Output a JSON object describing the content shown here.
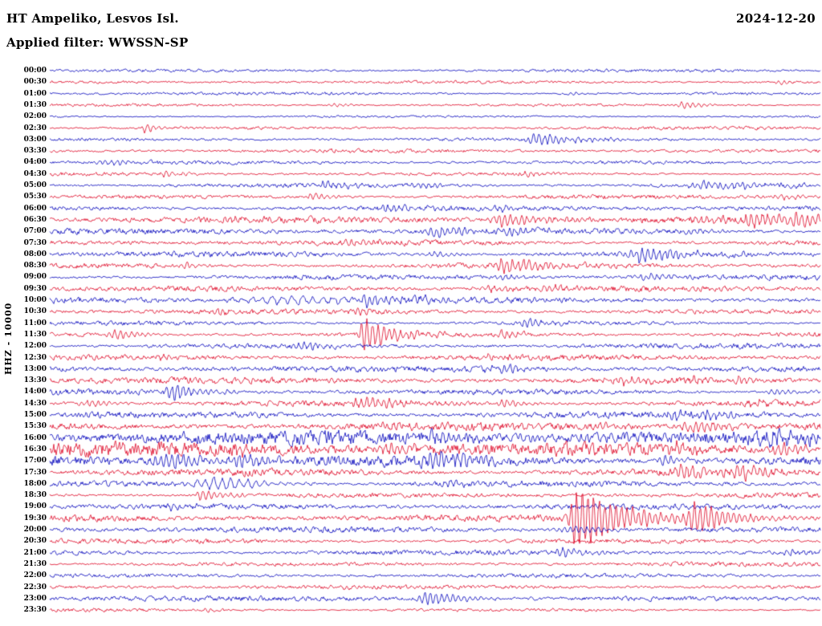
{
  "header": {
    "station": "HT Ampeliko, Lesvos Isl.",
    "date": "2024-12-20",
    "filter": "Applied filter: WWSSN-SP"
  },
  "y_axis": {
    "label": "HHZ - 10000"
  },
  "colors": {
    "trace_blue": "#0000bb",
    "trace_red": "#dd0022",
    "background": "#ffffff",
    "text": "#000000"
  },
  "chart_data": {
    "type": "line",
    "subtype": "helicorder-seismogram",
    "title": "HT Ampeliko, Lesvos Isl.",
    "date": "2024-12-20",
    "channel": "HHZ",
    "amplitude_scale": 10000,
    "filter": "WWSSN-SP",
    "minutes_per_row": 30,
    "n_rows": 48,
    "x_range_minutes": [
      0,
      30
    ],
    "legend": "alternating blue/red traces per 30-minute row",
    "rows": [
      {
        "label": "00:00",
        "color": "blue",
        "noise": 1.2,
        "events": []
      },
      {
        "label": "00:30",
        "color": "red",
        "noise": 1.2,
        "events": [
          {
            "t": 0.945,
            "amp": 3,
            "rise": 3,
            "decay": 8
          }
        ]
      },
      {
        "label": "01:00",
        "color": "blue",
        "noise": 1.3,
        "events": [
          {
            "t": 0.68,
            "amp": 2.5,
            "rise": 3,
            "decay": 8
          }
        ]
      },
      {
        "label": "01:30",
        "color": "red",
        "noise": 1.3,
        "events": [
          {
            "t": 0.82,
            "amp": 5,
            "rise": 3,
            "decay": 15
          },
          {
            "t": 0.37,
            "amp": 2.5,
            "rise": 3,
            "decay": 8
          }
        ]
      },
      {
        "label": "02:00",
        "color": "blue",
        "noise": 1.2,
        "events": []
      },
      {
        "label": "02:30",
        "color": "red",
        "noise": 1.4,
        "events": [
          {
            "t": 0.125,
            "amp": 6,
            "rise": 3,
            "decay": 12
          }
        ]
      },
      {
        "label": "03:00",
        "color": "blue",
        "noise": 1.4,
        "events": [
          {
            "t": 0.63,
            "amp": 8,
            "rise": 5,
            "decay": 25
          }
        ]
      },
      {
        "label": "03:30",
        "color": "red",
        "noise": 1.4,
        "events": [
          {
            "t": 0.37,
            "amp": 2.5,
            "rise": 4,
            "decay": 10
          }
        ]
      },
      {
        "label": "04:00",
        "color": "blue",
        "noise": 1.5,
        "events": [
          {
            "t": 0.076,
            "amp": 4,
            "rise": 4,
            "decay": 15
          }
        ]
      },
      {
        "label": "04:30",
        "color": "red",
        "noise": 1.6,
        "events": [
          {
            "t": 0.15,
            "amp": 4,
            "rise": 3,
            "decay": 12
          },
          {
            "t": 0.62,
            "amp": 3,
            "rise": 4,
            "decay": 10
          }
        ]
      },
      {
        "label": "05:00",
        "color": "blue",
        "noise": 2.2,
        "events": [
          {
            "t": 0.36,
            "amp": 5,
            "rise": 6,
            "decay": 20
          },
          {
            "t": 0.475,
            "amp": 4,
            "rise": 5,
            "decay": 15
          },
          {
            "t": 0.85,
            "amp": 6,
            "rise": 10,
            "decay": 40
          }
        ]
      },
      {
        "label": "05:30",
        "color": "red",
        "noise": 2.0,
        "events": [
          {
            "t": 0.34,
            "amp": 6,
            "rise": 3,
            "decay": 10
          },
          {
            "t": 0.95,
            "amp": 4,
            "rise": 5,
            "decay": 15
          }
        ]
      },
      {
        "label": "06:00",
        "color": "blue",
        "noise": 2.2,
        "events": [
          {
            "t": 0.435,
            "amp": 4,
            "rise": 6,
            "decay": 15
          },
          {
            "t": 0.58,
            "amp": 4,
            "rise": 5,
            "decay": 15
          }
        ]
      },
      {
        "label": "06:30",
        "color": "red",
        "noise": 2.6,
        "events": [
          {
            "t": 0.23,
            "amp": 4,
            "rise": 5,
            "decay": 12
          },
          {
            "t": 0.59,
            "amp": 8,
            "rise": 8,
            "decay": 30
          },
          {
            "t": 0.84,
            "amp": 6,
            "rise": 5,
            "decay": 15
          },
          {
            "t": 0.91,
            "amp": 10,
            "rise": 6,
            "decay": 25
          },
          {
            "t": 0.97,
            "amp": 7,
            "rise": 6,
            "decay": 20
          }
        ]
      },
      {
        "label": "07:00",
        "color": "blue",
        "noise": 2.4,
        "events": [
          {
            "t": 0.5,
            "amp": 9,
            "rise": 6,
            "decay": 25
          },
          {
            "t": 0.6,
            "amp": 4,
            "rise": 4,
            "decay": 12
          },
          {
            "t": 0.83,
            "amp": 4,
            "rise": 4,
            "decay": 12
          }
        ]
      },
      {
        "label": "07:30",
        "color": "red",
        "noise": 2.4,
        "events": [
          {
            "t": 0.4,
            "amp": 4,
            "rise": 8,
            "decay": 20
          }
        ]
      },
      {
        "label": "08:00",
        "color": "blue",
        "noise": 2.8,
        "events": [
          {
            "t": 0.765,
            "amp": 10,
            "rise": 8,
            "decay": 30
          },
          {
            "t": 0.5,
            "amp": 4,
            "rise": 5,
            "decay": 15
          }
        ]
      },
      {
        "label": "08:30",
        "color": "red",
        "noise": 2.6,
        "events": [
          {
            "t": 0.59,
            "amp": 9,
            "rise": 8,
            "decay": 30
          },
          {
            "t": 0.175,
            "amp": 4,
            "rise": 4,
            "decay": 10
          }
        ]
      },
      {
        "label": "09:00",
        "color": "blue",
        "noise": 2.2,
        "events": [
          {
            "t": 0.775,
            "amp": 5,
            "rise": 5,
            "decay": 15
          },
          {
            "t": 0.59,
            "amp": 4,
            "rise": 4,
            "decay": 12
          }
        ]
      },
      {
        "label": "09:30",
        "color": "red",
        "noise": 2.2,
        "events": [
          {
            "t": 0.57,
            "amp": 5,
            "rise": 6,
            "decay": 15
          },
          {
            "t": 0.65,
            "amp": 4,
            "rise": 5,
            "decay": 12
          }
        ]
      },
      {
        "label": "10:00",
        "color": "blue",
        "noise": 2.4,
        "events": [
          {
            "t": 0.35,
            "amp": 6,
            "rise": 55,
            "decay": 45,
            "freq": 0.5
          },
          {
            "t": 0.41,
            "amp": 9,
            "rise": 4,
            "decay": 15
          },
          {
            "t": 0.48,
            "amp": 4,
            "rise": 4,
            "decay": 12
          }
        ]
      },
      {
        "label": "10:30",
        "color": "red",
        "noise": 2.2,
        "events": [
          {
            "t": 0.22,
            "amp": 4,
            "rise": 4,
            "decay": 12
          },
          {
            "t": 0.4,
            "amp": 3.5,
            "rise": 4,
            "decay": 12
          }
        ]
      },
      {
        "label": "11:00",
        "color": "blue",
        "noise": 2.0,
        "events": [
          {
            "t": 0.62,
            "amp": 6,
            "rise": 4,
            "decay": 15
          }
        ]
      },
      {
        "label": "11:30",
        "color": "red",
        "noise": 2.4,
        "events": [
          {
            "t": 0.41,
            "amp": 22,
            "rise": 4,
            "decay": 18
          },
          {
            "t": 0.085,
            "amp": 7,
            "rise": 5,
            "decay": 15
          },
          {
            "t": 0.59,
            "amp": 5,
            "rise": 5,
            "decay": 15
          }
        ]
      },
      {
        "label": "12:00",
        "color": "blue",
        "noise": 2.2,
        "events": [
          {
            "t": 0.33,
            "amp": 4,
            "rise": 5,
            "decay": 15
          }
        ]
      },
      {
        "label": "12:30",
        "color": "red",
        "noise": 2.2,
        "events": [
          {
            "t": 0.14,
            "amp": 5,
            "rise": 3,
            "decay": 10
          },
          {
            "t": 0.565,
            "amp": 4,
            "rise": 4,
            "decay": 12
          }
        ]
      },
      {
        "label": "13:00",
        "color": "blue",
        "noise": 2.4,
        "events": [
          {
            "t": 0.57,
            "amp": 5,
            "rise": 4,
            "decay": 12
          },
          {
            "t": 0.595,
            "amp": 5,
            "rise": 3,
            "decay": 10
          }
        ]
      },
      {
        "label": "13:30",
        "color": "red",
        "noise": 2.6,
        "events": [
          {
            "t": 0.19,
            "amp": 4,
            "rise": 4,
            "decay": 12
          },
          {
            "t": 0.74,
            "amp": 7,
            "rise": 6,
            "decay": 18
          },
          {
            "t": 0.84,
            "amp": 5,
            "rise": 5,
            "decay": 14
          },
          {
            "t": 0.895,
            "amp": 5,
            "rise": 4,
            "decay": 12
          }
        ]
      },
      {
        "label": "14:00",
        "color": "blue",
        "noise": 2.6,
        "events": [
          {
            "t": 0.16,
            "amp": 12,
            "rise": 5,
            "decay": 20
          },
          {
            "t": 0.94,
            "amp": 5,
            "rise": 6,
            "decay": 15
          }
        ]
      },
      {
        "label": "14:30",
        "color": "red",
        "noise": 3.0,
        "events": [
          {
            "t": 0.41,
            "amp": 8,
            "rise": 8,
            "decay": 25
          },
          {
            "t": 0.05,
            "amp": 5,
            "rise": 5,
            "decay": 12
          },
          {
            "t": 0.59,
            "amp": 5,
            "rise": 5,
            "decay": 15
          },
          {
            "t": 0.915,
            "amp": 5,
            "rise": 4,
            "decay": 12
          }
        ]
      },
      {
        "label": "15:00",
        "color": "blue",
        "noise": 3.0,
        "events": [
          {
            "t": 0.055,
            "amp": 5,
            "rise": 4,
            "decay": 12
          },
          {
            "t": 0.81,
            "amp": 6,
            "rise": 6,
            "decay": 18
          },
          {
            "t": 0.855,
            "amp": 5,
            "rise": 4,
            "decay": 12
          }
        ]
      },
      {
        "label": "15:30",
        "color": "red",
        "noise": 3.2,
        "events": [
          {
            "t": 0.435,
            "amp": 5,
            "rise": 5,
            "decay": 15
          },
          {
            "t": 0.71,
            "amp": 5,
            "rise": 5,
            "decay": 15
          },
          {
            "t": 0.84,
            "amp": 8,
            "rise": 10,
            "decay": 25
          }
        ]
      },
      {
        "label": "16:00",
        "color": "blue",
        "noise": 5.5,
        "events": [
          {
            "t": 0.5,
            "amp": 7,
            "rise": 6,
            "decay": 20
          },
          {
            "t": 0.95,
            "amp": 8,
            "rise": 15,
            "decay": 30
          }
        ]
      },
      {
        "label": "16:30",
        "color": "red",
        "noise": 5.5,
        "events": [
          {
            "t": 0.25,
            "amp": 8,
            "rise": 6,
            "decay": 20
          },
          {
            "t": 0.44,
            "amp": 8,
            "rise": 6,
            "decay": 18
          },
          {
            "t": 0.81,
            "amp": 8,
            "rise": 8,
            "decay": 20
          },
          {
            "t": 0.95,
            "amp": 8,
            "rise": 6,
            "decay": 18
          }
        ]
      },
      {
        "label": "17:00",
        "color": "blue",
        "noise": 5.0,
        "events": [
          {
            "t": 0.15,
            "amp": 10,
            "rise": 8,
            "decay": 25
          },
          {
            "t": 0.25,
            "amp": 7,
            "rise": 5,
            "decay": 15
          },
          {
            "t": 0.495,
            "amp": 11,
            "rise": 8,
            "decay": 28
          },
          {
            "t": 0.8,
            "amp": 7,
            "rise": 5,
            "decay": 15
          }
        ]
      },
      {
        "label": "17:30",
        "color": "red",
        "noise": 3.6,
        "events": [
          {
            "t": 0.82,
            "amp": 10,
            "rise": 6,
            "decay": 22
          },
          {
            "t": 0.895,
            "amp": 9,
            "rise": 5,
            "decay": 18
          }
        ]
      },
      {
        "label": "18:00",
        "color": "blue",
        "noise": 2.8,
        "events": [
          {
            "t": 0.225,
            "amp": 9,
            "rise": 20,
            "decay": 30,
            "freq": 0.6
          },
          {
            "t": 0.515,
            "amp": 6,
            "rise": 3,
            "decay": 12
          }
        ]
      },
      {
        "label": "18:30",
        "color": "red",
        "noise": 2.0,
        "events": [
          {
            "t": 0.196,
            "amp": 8,
            "rise": 3,
            "decay": 15
          }
        ]
      },
      {
        "label": "19:00",
        "color": "blue",
        "noise": 2.2,
        "events": [
          {
            "t": 0.16,
            "amp": 4,
            "rise": 4,
            "decay": 12
          }
        ]
      },
      {
        "label": "19:30",
        "color": "red",
        "noise": 2.6,
        "events": [
          {
            "t": 0.685,
            "amp": 40,
            "rise": 5,
            "decay": 30
          },
          {
            "t": 0.836,
            "amp": 20,
            "rise": 4,
            "decay": 22
          }
        ]
      },
      {
        "label": "20:00",
        "color": "blue",
        "noise": 2.6,
        "events": [
          {
            "t": 0.68,
            "amp": 5,
            "rise": 10,
            "decay": 25
          }
        ]
      },
      {
        "label": "20:30",
        "color": "red",
        "noise": 2.4,
        "events": []
      },
      {
        "label": "21:00",
        "color": "blue",
        "noise": 2.6,
        "events": [
          {
            "t": 0.665,
            "amp": 6,
            "rise": 8,
            "decay": 20
          },
          {
            "t": 0.955,
            "amp": 4,
            "rise": 4,
            "decay": 12
          }
        ]
      },
      {
        "label": "21:30",
        "color": "red",
        "noise": 1.8,
        "events": []
      },
      {
        "label": "22:00",
        "color": "blue",
        "noise": 1.6,
        "events": []
      },
      {
        "label": "22:30",
        "color": "red",
        "noise": 1.6,
        "events": [
          {
            "t": 0.37,
            "amp": 3,
            "rise": 4,
            "decay": 10
          }
        ]
      },
      {
        "label": "23:00",
        "color": "blue",
        "noise": 2.2,
        "events": [
          {
            "t": 0.49,
            "amp": 11,
            "rise": 5,
            "decay": 20
          }
        ]
      },
      {
        "label": "23:30",
        "color": "red",
        "noise": 1.6,
        "events": [
          {
            "t": 0.205,
            "amp": 3,
            "rise": 3,
            "decay": 10
          }
        ]
      }
    ]
  }
}
